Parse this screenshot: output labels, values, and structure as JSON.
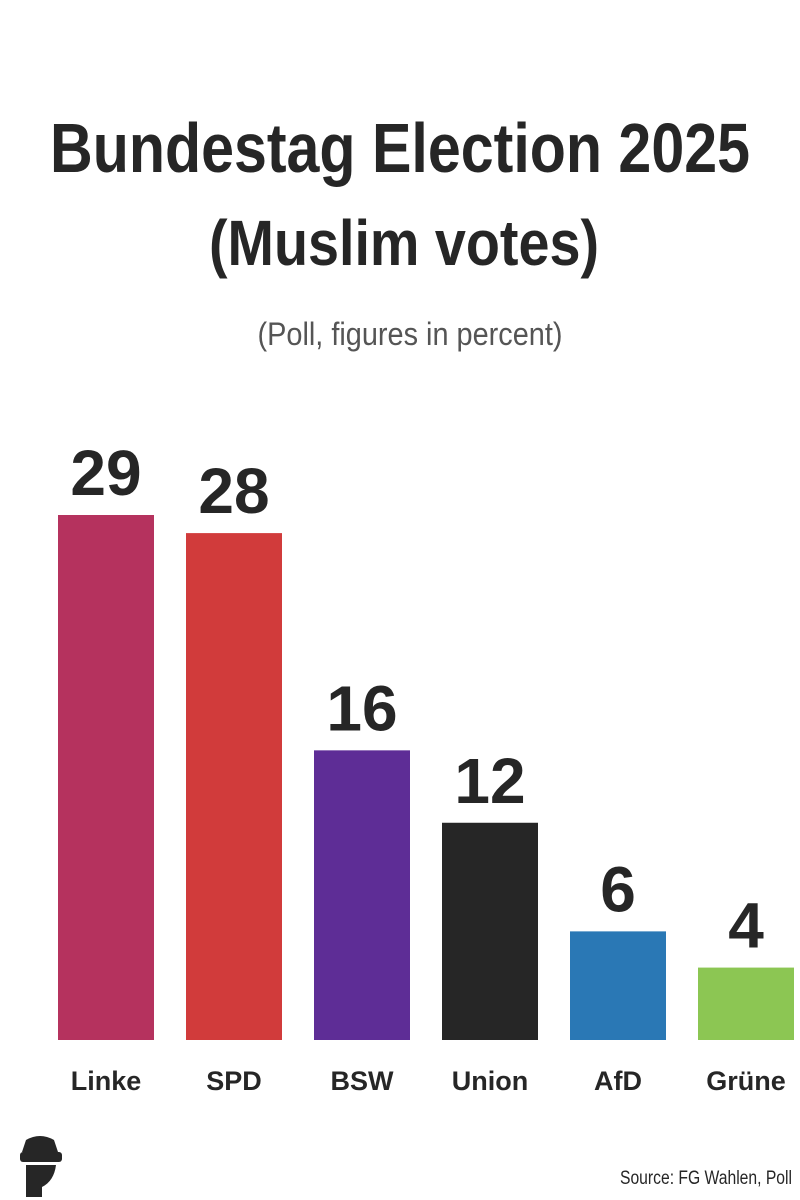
{
  "chart_data": {
    "type": "bar",
    "title": "Bundestag Election 2025",
    "subtitle": "(Muslim votes)",
    "note": "(Poll, figures in percent)",
    "categories": [
      "Linke",
      "SPD",
      "BSW",
      "Union",
      "AfD",
      "Grüne"
    ],
    "values": [
      29,
      28,
      16,
      12,
      6,
      4
    ],
    "colors": [
      "#b5325e",
      "#d13b3b",
      "#5e2d96",
      "#262626",
      "#2a78b5",
      "#8cc653"
    ],
    "source": "Source: FG Wahlen, Poll"
  }
}
